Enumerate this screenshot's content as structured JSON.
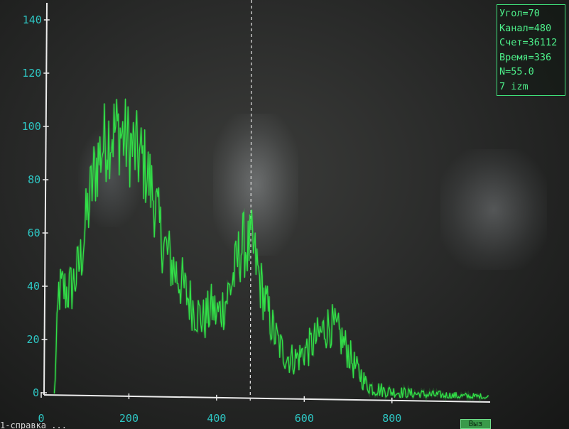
{
  "info_panel": {
    "angle": "Угол=70",
    "channel": "Канал=480",
    "count": "Счет=36112",
    "time": "Время=336",
    "n": "N=55.0",
    "izm": "7 izm"
  },
  "status_bar": {
    "text": "1-справка  ...",
    "button_label": "Выз"
  },
  "colors": {
    "trace": "#33e84a",
    "axis": "#ececec",
    "tick_label": "#2ec7c4",
    "info_text": "#4df08a",
    "cursor": "#e8e8e8"
  },
  "chart_data": {
    "type": "line",
    "title": "",
    "xlabel": "",
    "ylabel": "",
    "xlim": [
      0,
      1024
    ],
    "ylim": [
      0,
      140
    ],
    "x_ticks": [
      0,
      200,
      400,
      600,
      800
    ],
    "y_ticks": [
      0,
      20,
      40,
      60,
      80,
      100,
      120,
      140
    ],
    "cursor_x": 480,
    "grid": false,
    "legend": "none",
    "series": [
      {
        "x": [
          30,
          35,
          40,
          50,
          60,
          70,
          80,
          90,
          100,
          110,
          120,
          130,
          140,
          150,
          160,
          170,
          180,
          190,
          200,
          210,
          220,
          230,
          240,
          250,
          260,
          270,
          280,
          290,
          300,
          310,
          320,
          330,
          340,
          350,
          360,
          370,
          380,
          390,
          400,
          410,
          420,
          430,
          440,
          450,
          460,
          470,
          480,
          490,
          500,
          510,
          520,
          530,
          540,
          550,
          560,
          570,
          580,
          590,
          600,
          610,
          620,
          630,
          640,
          650,
          660,
          670,
          680,
          690,
          700,
          710,
          720,
          730,
          740,
          750,
          760,
          770,
          780,
          790,
          800,
          820,
          840,
          860,
          880,
          900,
          920,
          940,
          960,
          980,
          1000,
          1020
        ],
        "y": [
          0,
          18,
          38,
          39,
          38,
          40,
          44,
          50,
          62,
          72,
          82,
          88,
          93,
          96,
          98,
          99,
          98,
          96,
          94,
          92,
          90,
          88,
          84,
          78,
          72,
          62,
          56,
          52,
          48,
          45,
          42,
          38,
          35,
          32,
          30,
          28,
          30,
          33,
          30,
          32,
          35,
          40,
          45,
          52,
          57,
          55,
          57,
          50,
          42,
          36,
          30,
          24,
          20,
          17,
          15,
          14,
          14,
          15,
          17,
          18,
          20,
          22,
          24,
          26,
          27,
          25,
          23,
          20,
          17,
          13,
          10,
          8,
          5,
          4,
          3,
          3,
          2.5,
          2.2,
          2,
          1.8,
          1.5,
          1.3,
          1.1,
          1,
          0.9,
          0.8,
          0.7,
          0.6,
          0.6,
          0.5
        ]
      }
    ]
  }
}
